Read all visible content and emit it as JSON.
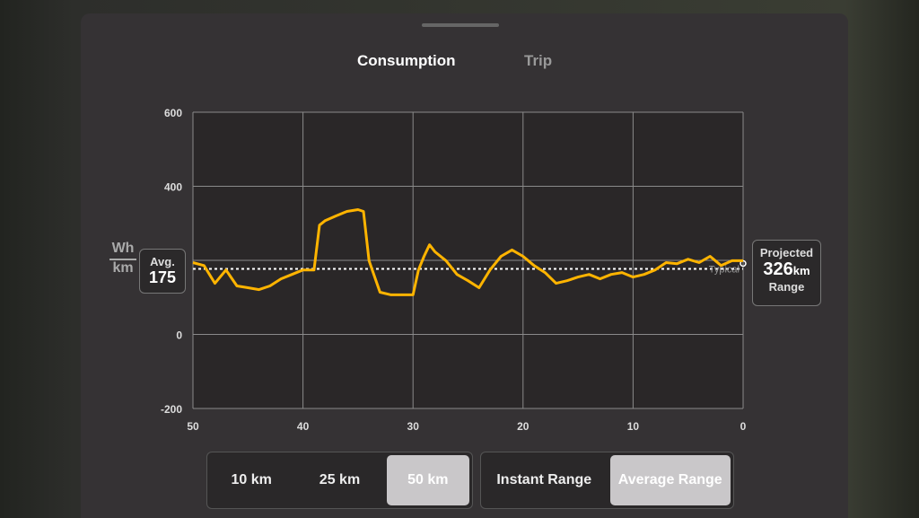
{
  "tabs": [
    "Consumption",
    "Trip"
  ],
  "active_tab": 0,
  "y_unit": {
    "top": "Wh",
    "bottom": "km"
  },
  "average": {
    "label": "Avg.",
    "value": 175
  },
  "projected": {
    "label": "Projected",
    "value": 326,
    "unit": "km",
    "caption": "Range"
  },
  "distance_buttons": [
    "10 km",
    "25 km",
    "50 km"
  ],
  "distance_selected": 2,
  "range_buttons": [
    "Instant Range",
    "Average Range"
  ],
  "range_selected": 1,
  "chart_data": {
    "type": "line",
    "xlim": [
      50,
      0
    ],
    "xticks": [
      50,
      40,
      30,
      20,
      10,
      0
    ],
    "ylim": [
      -200,
      600
    ],
    "yticks": [
      -200,
      0,
      400,
      600
    ],
    "ygrid": [
      -200,
      0,
      200,
      400,
      600
    ],
    "grid": true,
    "typical": {
      "label": "Typical",
      "value": 177
    },
    "x": [
      50,
      49,
      48,
      47,
      46,
      45,
      44,
      43,
      42,
      41,
      40,
      39,
      38.5,
      38,
      37,
      36,
      35,
      34.5,
      34,
      33,
      32,
      31,
      30,
      29.5,
      29,
      28.5,
      28,
      27,
      26,
      25,
      24,
      23,
      22,
      21,
      20,
      19,
      18,
      17,
      16,
      15,
      14,
      13,
      12,
      11,
      10,
      9,
      8,
      7,
      6,
      5,
      4,
      3,
      2,
      1,
      0
    ],
    "series": [
      {
        "color": "#ffb400",
        "values": [
          194,
          186,
          138,
          174,
          131,
          126,
          121,
          131,
          150,
          162,
          174,
          174,
          295,
          307,
          320,
          332,
          337,
          332,
          199,
          114,
          107,
          107,
          107,
          174,
          211,
          242,
          223,
          199,
          162,
          145,
          126,
          174,
          211,
          228,
          211,
          186,
          167,
          138,
          145,
          155,
          162,
          150,
          162,
          167,
          155,
          162,
          174,
          194,
          191,
          203,
          194,
          211,
          186,
          199,
          199
        ]
      }
    ]
  }
}
